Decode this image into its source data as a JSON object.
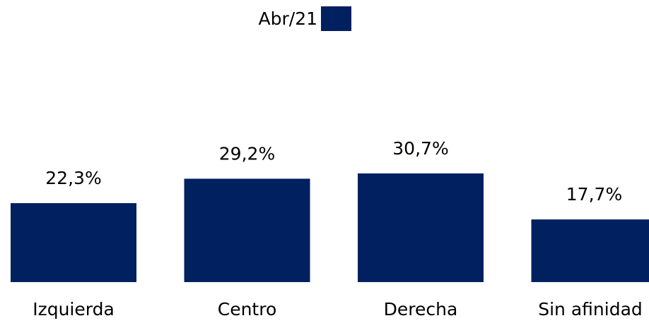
{
  "chart_data": {
    "type": "bar",
    "categories": [
      "Izquierda",
      "Centro",
      "Derecha",
      "Sin afinidad"
    ],
    "series": [
      {
        "name": "Abr/21",
        "color": "#002060",
        "values": [
          22.3,
          29.2,
          30.7,
          17.7
        ],
        "value_labels": [
          "22,3%",
          "29,2%",
          "30,7%",
          "17,7%"
        ]
      }
    ],
    "legend": "top"
  }
}
